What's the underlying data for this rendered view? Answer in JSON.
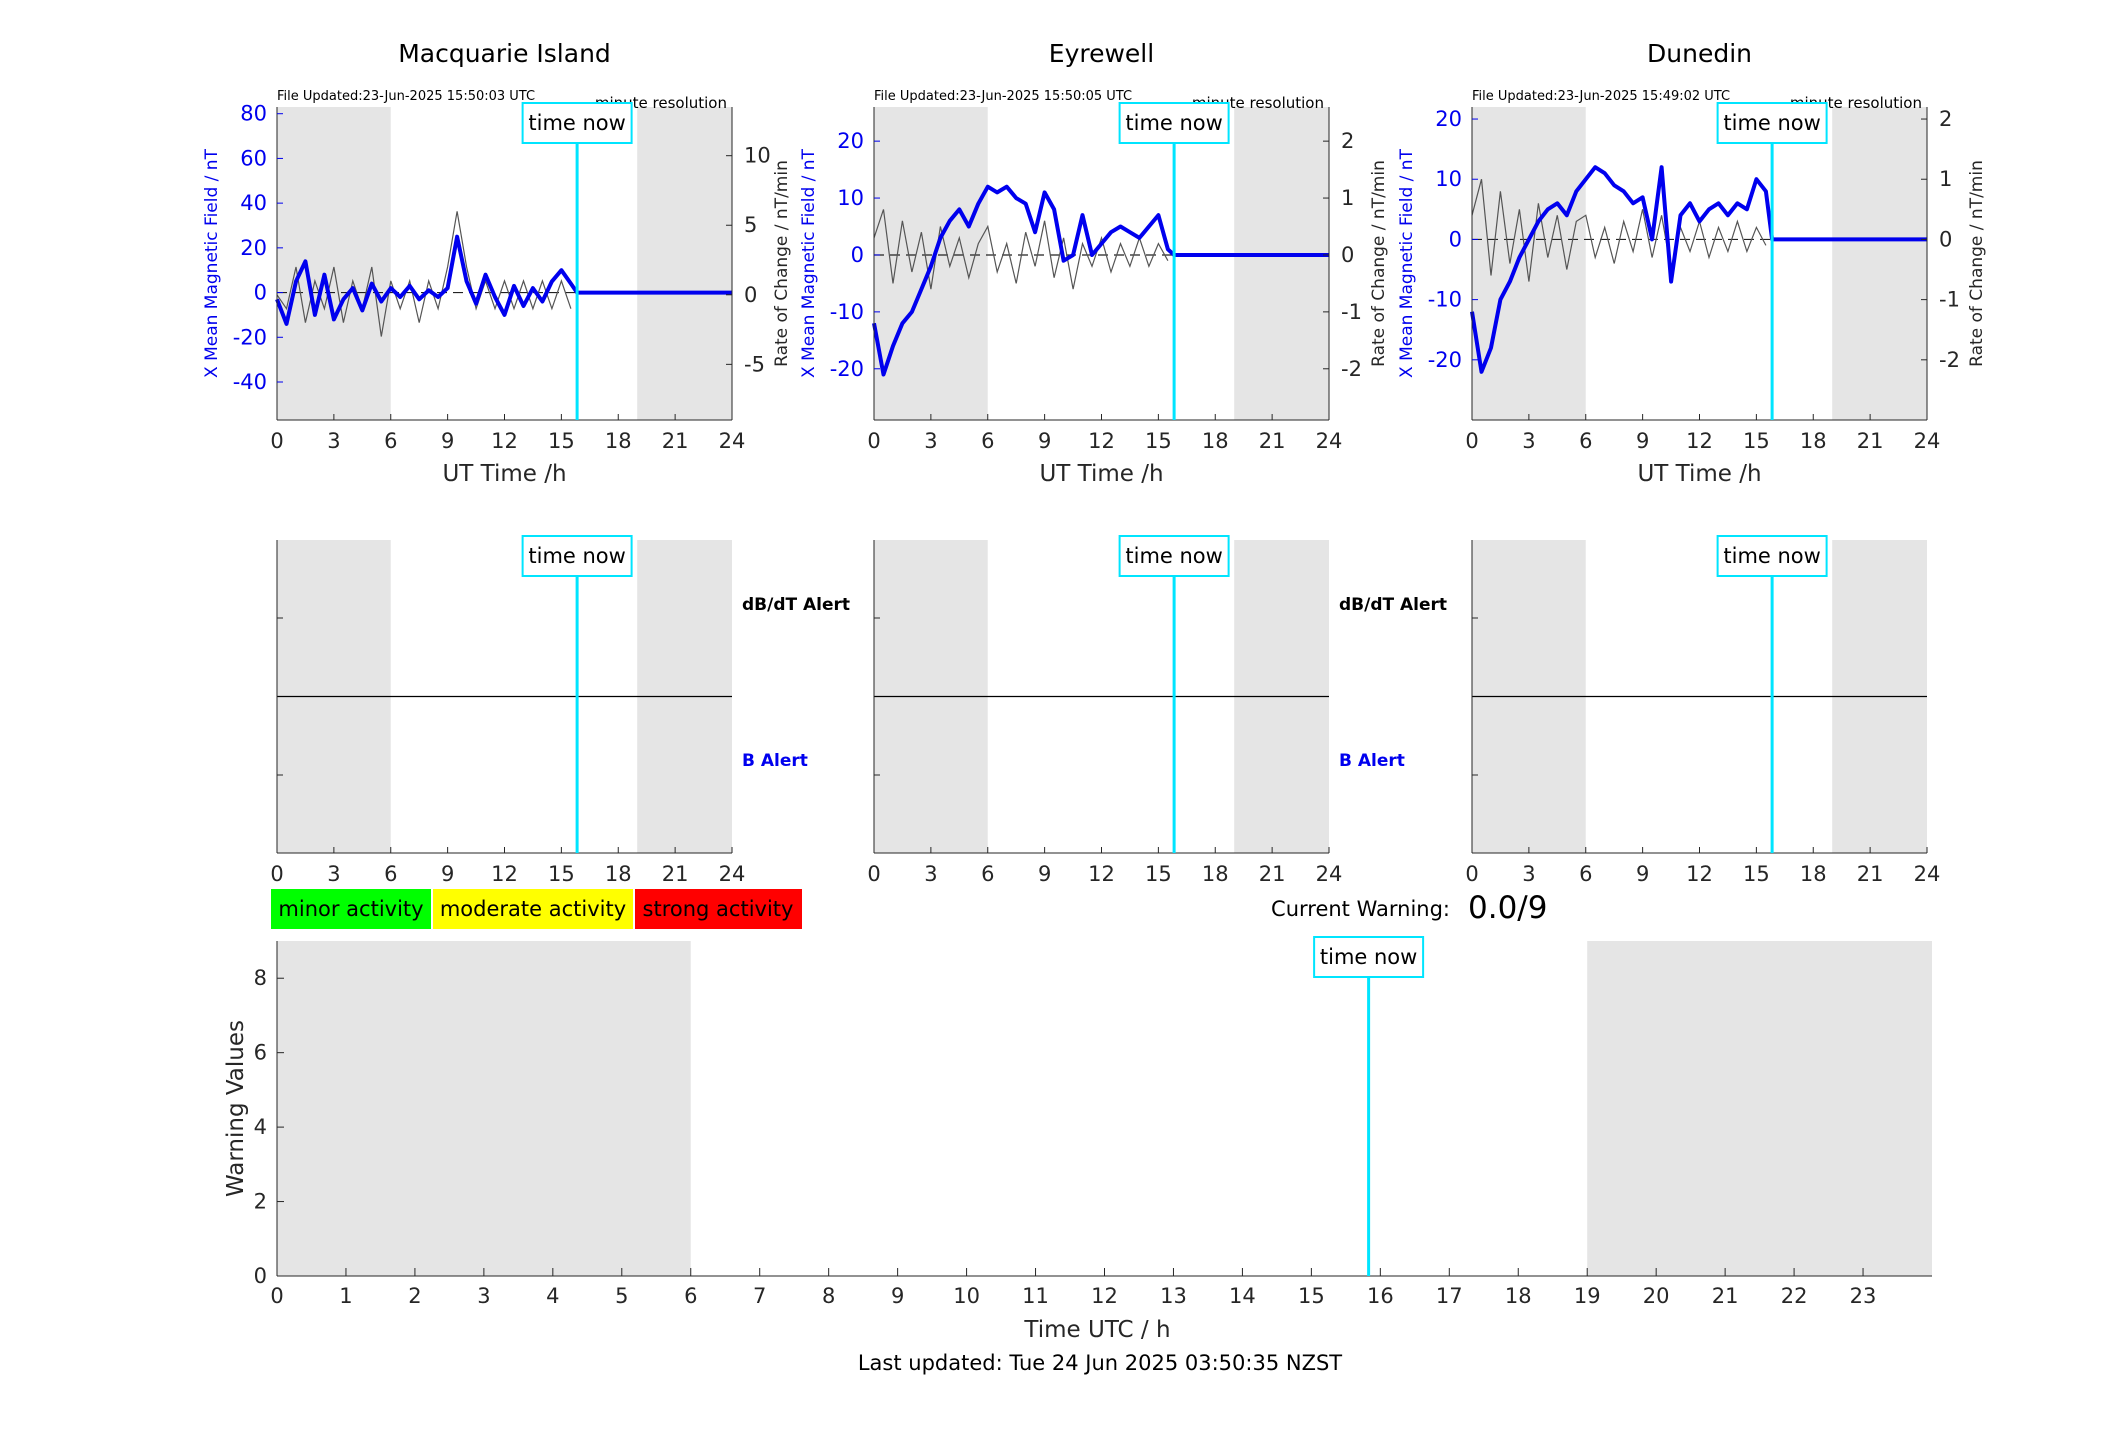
{
  "colors": {
    "blue": "#0000ee",
    "cyan": "#00e5ff",
    "grey_band": "#e5e5e5",
    "rate_trace": "#555555",
    "minor": "#00ff00",
    "moderate": "#ffff00",
    "strong": "#ff0000"
  },
  "labels": {
    "time_now": "time now",
    "ut_axis": "UT Time /h",
    "left_axis": "X Mean Magnetic Field / nT",
    "right_axis": "Rate of Change / nT/min",
    "resolution": "minute resolution",
    "dbdt_alert": "dB/dT Alert",
    "b_alert": "B Alert"
  },
  "warning": {
    "label": "Current Warning:",
    "value": "0.0/9"
  },
  "legend": {
    "minor": "minor activity",
    "moderate": "moderate activity",
    "strong": "strong activity"
  },
  "footer": {
    "last_updated": "Last updated: Tue 24 Jun 2025 03:50:35 NZST"
  },
  "chart_data": [
    {
      "type": "line",
      "title": "Macquarie Island",
      "file_updated": "File Updated:23-Jun-2025 15:50:03 UTC",
      "xlim": [
        0,
        24
      ],
      "xticks": [
        0,
        3,
        6,
        9,
        12,
        15,
        18,
        21,
        24
      ],
      "ylim_left": [
        -57,
        83
      ],
      "yticks_left": [
        -40,
        -20,
        0,
        20,
        40,
        60,
        80
      ],
      "ylim_right": [
        -9,
        13.5
      ],
      "yticks_right": [
        -5,
        0,
        5,
        10
      ],
      "time_now": 15.83,
      "night_bands": [
        [
          0,
          6
        ],
        [
          19,
          24
        ]
      ],
      "series": [
        {
          "x": [
            0,
            0.5,
            1.0,
            1.5,
            2.0,
            2.5,
            3.0,
            3.5,
            4.0,
            4.5,
            5.0,
            5.5,
            6.0,
            6.5,
            7.0,
            7.5,
            8.0,
            8.5,
            9.0,
            9.5,
            10.0,
            10.5,
            11.0,
            11.5,
            12.0,
            12.5,
            13.0,
            13.5,
            14.0,
            14.5,
            15.0,
            15.5,
            15.83,
            24
          ],
          "values": [
            -3,
            -14,
            5,
            14,
            -10,
            8,
            -12,
            -3,
            2,
            -8,
            4,
            -4,
            2,
            -2,
            3,
            -3,
            1,
            -2,
            2,
            25,
            5,
            -5,
            8,
            -2,
            -10,
            3,
            -6,
            2,
            -4,
            5,
            10,
            4,
            0,
            0
          ]
        },
        {
          "x": [
            0,
            0.5,
            1.0,
            1.5,
            2.0,
            2.5,
            3.0,
            3.5,
            4.0,
            4.5,
            5.0,
            5.5,
            6.0,
            6.5,
            7.0,
            7.5,
            8.0,
            8.5,
            9.0,
            9.5,
            10.0,
            10.5,
            11.0,
            11.5,
            12.0,
            12.5,
            13.0,
            13.5,
            14.0,
            14.5,
            15.0,
            15.5
          ],
          "values": [
            0,
            -1,
            2,
            -2,
            1,
            -1,
            2,
            -2,
            1,
            -1,
            2,
            -3,
            1,
            -1,
            1,
            -2,
            1,
            -1,
            2,
            6,
            2,
            -1,
            1,
            -1,
            1,
            -1,
            1,
            -1,
            1,
            -1,
            1,
            -1
          ]
        }
      ]
    },
    {
      "type": "line",
      "title": "Eyrewell",
      "file_updated": "File Updated:23-Jun-2025 15:50:05 UTC",
      "xlim": [
        0,
        24
      ],
      "xticks": [
        0,
        3,
        6,
        9,
        12,
        15,
        18,
        21,
        24
      ],
      "ylim_left": [
        -29,
        26
      ],
      "yticks_left": [
        -20,
        -10,
        0,
        10,
        20
      ],
      "ylim_right": [
        -2.9,
        2.6
      ],
      "yticks_right": [
        -2,
        -1,
        0,
        1,
        2
      ],
      "time_now": 15.83,
      "night_bands": [
        [
          0,
          6
        ],
        [
          19,
          24
        ]
      ],
      "series": [
        {
          "x": [
            0,
            0.5,
            1.0,
            1.5,
            2.0,
            2.5,
            3.0,
            3.5,
            4.0,
            4.5,
            5.0,
            5.5,
            6.0,
            6.5,
            7.0,
            7.5,
            8.0,
            8.5,
            9.0,
            9.5,
            10.0,
            10.5,
            11.0,
            11.5,
            12.0,
            12.5,
            13.0,
            13.5,
            14.0,
            14.5,
            15.0,
            15.5,
            15.83,
            24
          ],
          "values": [
            -12,
            -21,
            -16,
            -12,
            -10,
            -6,
            -2,
            3,
            6,
            8,
            5,
            9,
            12,
            11,
            12,
            10,
            9,
            4,
            11,
            8,
            -1,
            0,
            7,
            0,
            2,
            4,
            5,
            4,
            3,
            5,
            7,
            1,
            0,
            0
          ]
        },
        {
          "x": [
            0,
            0.5,
            1.0,
            1.5,
            2.0,
            2.5,
            3.0,
            3.5,
            4.0,
            4.5,
            5.0,
            5.5,
            6.0,
            6.5,
            7.0,
            7.5,
            8.0,
            8.5,
            9.0,
            9.5,
            10.0,
            10.5,
            11.0,
            11.5,
            12.0,
            12.5,
            13.0,
            13.5,
            14.0,
            14.5,
            15.0,
            15.5
          ],
          "values": [
            0.3,
            0.8,
            -0.5,
            0.6,
            -0.3,
            0.4,
            -0.6,
            0.5,
            -0.2,
            0.3,
            -0.4,
            0.2,
            0.5,
            -0.3,
            0.2,
            -0.5,
            0.4,
            -0.2,
            0.6,
            -0.4,
            0.3,
            -0.6,
            0.2,
            -0.2,
            0.3,
            -0.3,
            0.2,
            -0.2,
            0.3,
            -0.2,
            0.2,
            -0.1
          ]
        }
      ]
    },
    {
      "type": "line",
      "title": "Dunedin",
      "file_updated": "File Updated:23-Jun-2025 15:49:02 UTC",
      "xlim": [
        0,
        24
      ],
      "xticks": [
        0,
        3,
        6,
        9,
        12,
        15,
        18,
        21,
        24
      ],
      "ylim_left": [
        -30,
        22
      ],
      "yticks_left": [
        -20,
        -10,
        0,
        10,
        20
      ],
      "ylim_right": [
        -3,
        2.2
      ],
      "yticks_right": [
        -2,
        -1,
        0,
        1,
        2
      ],
      "time_now": 15.83,
      "night_bands": [
        [
          0,
          6
        ],
        [
          19,
          24
        ]
      ],
      "series": [
        {
          "x": [
            0,
            0.5,
            1.0,
            1.5,
            2.0,
            2.5,
            3.0,
            3.5,
            4.0,
            4.5,
            5.0,
            5.5,
            6.0,
            6.5,
            7.0,
            7.5,
            8.0,
            8.5,
            9.0,
            9.5,
            10.0,
            10.5,
            11.0,
            11.5,
            12.0,
            12.5,
            13.0,
            13.5,
            14.0,
            14.5,
            15.0,
            15.5,
            15.83,
            24
          ],
          "values": [
            -12,
            -22,
            -18,
            -10,
            -7,
            -3,
            0,
            3,
            5,
            6,
            4,
            8,
            10,
            12,
            11,
            9,
            8,
            6,
            7,
            0,
            12,
            -7,
            4,
            6,
            3,
            5,
            6,
            4,
            6,
            5,
            10,
            8,
            0,
            0
          ]
        },
        {
          "x": [
            0,
            0.5,
            1.0,
            1.5,
            2.0,
            2.5,
            3.0,
            3.5,
            4.0,
            4.5,
            5.0,
            5.5,
            6.0,
            6.5,
            7.0,
            7.5,
            8.0,
            8.5,
            9.0,
            9.5,
            10.0,
            10.5,
            11.0,
            11.5,
            12.0,
            12.5,
            13.0,
            13.5,
            14.0,
            14.5,
            15.0,
            15.5
          ],
          "values": [
            0.4,
            1.0,
            -0.6,
            0.8,
            -0.4,
            0.5,
            -0.7,
            0.6,
            -0.3,
            0.4,
            -0.5,
            0.3,
            0.4,
            -0.3,
            0.2,
            -0.4,
            0.3,
            -0.2,
            0.5,
            -0.3,
            0.4,
            -0.5,
            0.2,
            -0.2,
            0.3,
            -0.3,
            0.2,
            -0.2,
            0.3,
            -0.2,
            0.2,
            -0.1
          ]
        }
      ]
    },
    {
      "type": "bar",
      "title": "",
      "xlabel": "Time UTC / h",
      "ylabel": "Warning Values",
      "xlim": [
        0,
        24
      ],
      "xticks": [
        0,
        1,
        2,
        3,
        4,
        5,
        6,
        7,
        8,
        9,
        10,
        11,
        12,
        13,
        14,
        15,
        16,
        17,
        18,
        19,
        20,
        21,
        22,
        23
      ],
      "ylim": [
        0,
        9
      ],
      "yticks": [
        0,
        2,
        4,
        6,
        8
      ],
      "time_now": 15.83,
      "night_bands": [
        [
          0,
          6
        ],
        [
          19,
          24
        ]
      ],
      "values": []
    }
  ]
}
